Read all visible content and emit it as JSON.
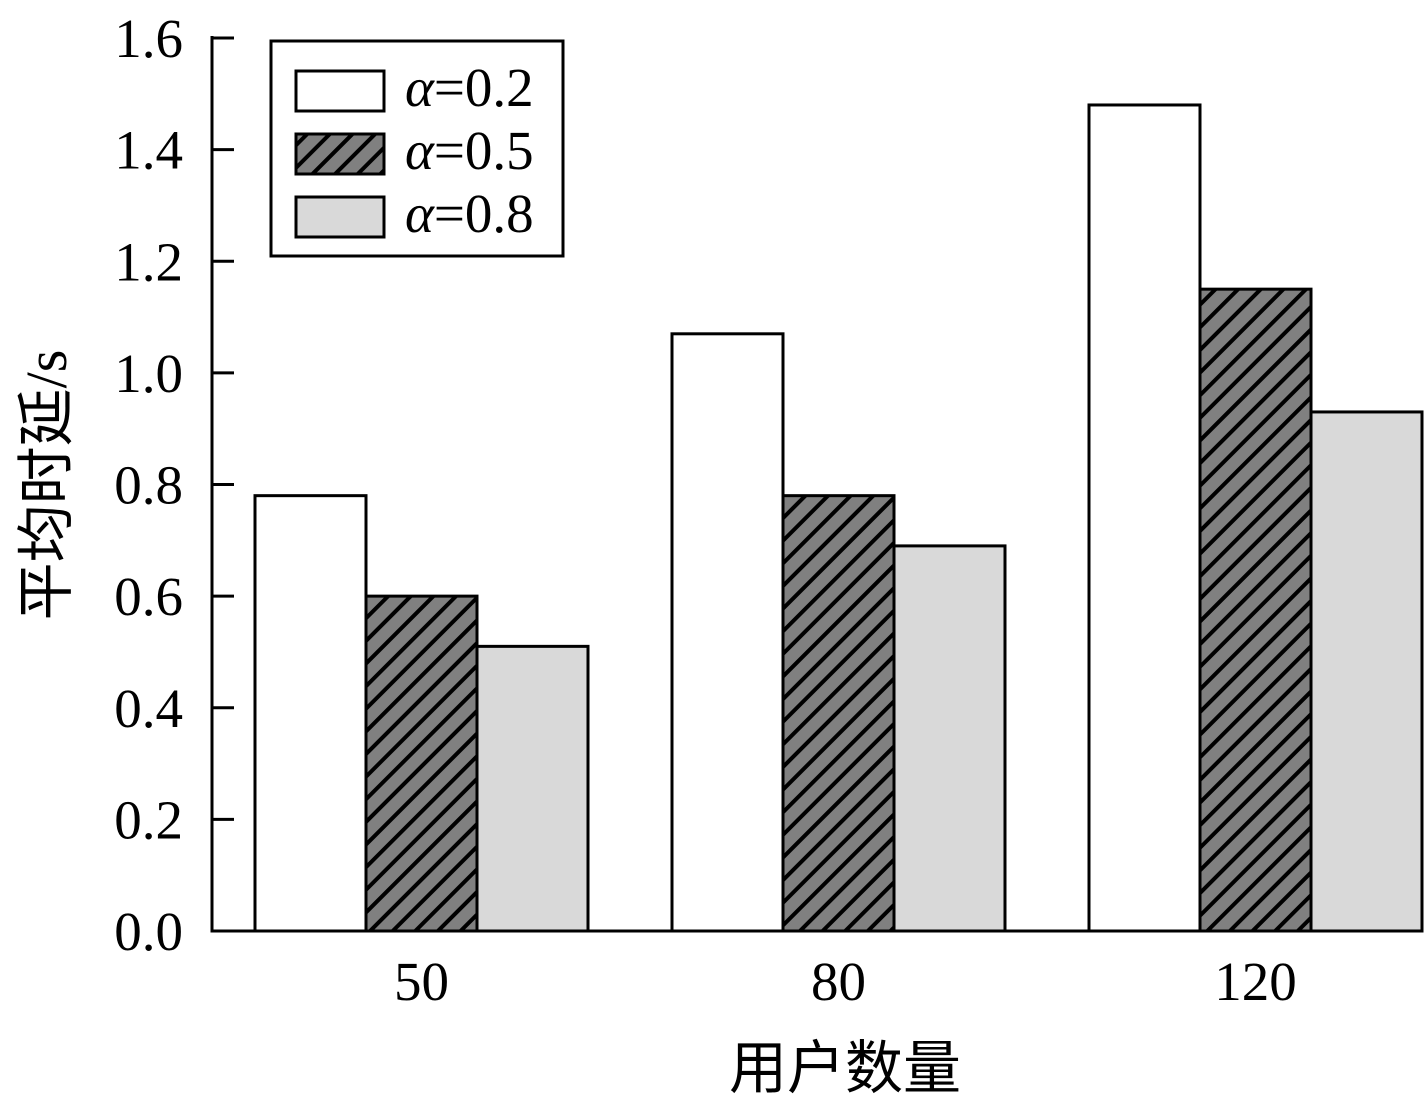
{
  "chart_data": {
    "type": "bar",
    "xlabel": "用户数量",
    "ylabel": "平均时延/s",
    "categories": [
      "50",
      "80",
      "120"
    ],
    "series": [
      {
        "name": "α=0.2",
        "values": [
          0.78,
          1.07,
          1.48
        ],
        "color": "#ffffff",
        "hatch": false
      },
      {
        "name": "α=0.5",
        "values": [
          0.6,
          0.78,
          1.15
        ],
        "color": "#808080",
        "hatch": true
      },
      {
        "name": "α=0.8",
        "values": [
          0.51,
          0.69,
          0.93
        ],
        "color": "#d9d9d9",
        "hatch": false
      }
    ],
    "ylim": [
      0,
      1.6
    ],
    "yticks": [
      "0.0",
      "0.2",
      "0.4",
      "0.6",
      "0.8",
      "1.0",
      "1.2",
      "1.4",
      "1.6"
    ],
    "grid": false,
    "legend": "top-left"
  }
}
